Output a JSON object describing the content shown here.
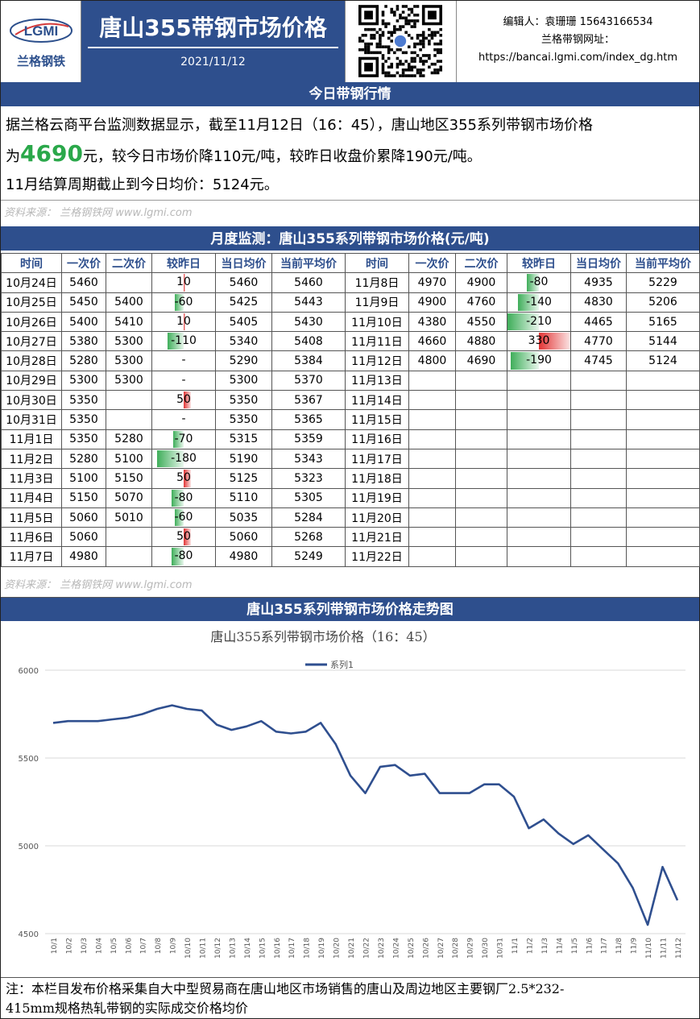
{
  "header": {
    "logo_text": "兰格钢铁",
    "logo_mark": "LGMI",
    "title": "唐山355带钢市场价格",
    "date": "2021/11/12",
    "editor": "编辑人：袁珊珊 15643166534",
    "site_label": "兰格带钢网址：",
    "site_url": "https://bancai.lgmi.com/index_dg.htm"
  },
  "today_section": {
    "title": "今日带钢行情",
    "line1": "据兰格云商平台监测数据显示，截至11月12日（16：45），唐山地区355系列带钢市场价格",
    "line2_prefix": "为",
    "price": "4690",
    "line2_suffix": "元，较今日市场价降110元/吨，较昨日收盘价累降190元/吨。",
    "line3": "11月结算周期截止到今日均价：5124元。",
    "source": "资料来源： 兰格钢铁网 www.lgmi.com"
  },
  "monthly_section": {
    "title": "月度监测：唐山355系列带钢市场价格(元/吨)",
    "headers": [
      "时间",
      "一次价",
      "二次价",
      "较昨日",
      "当日均价",
      "当前平均价",
      "时间",
      "一次价",
      "二次价",
      "较昨日",
      "当日均价",
      "当前平均价"
    ],
    "rows": [
      {
        "d1": "10月24日",
        "p1": "5460",
        "q1": "",
        "c1": "10",
        "a1": "5460",
        "m1": "5460",
        "d2": "11月8日",
        "p2": "4970",
        "q2": "4900",
        "c2": "-80",
        "a2": "4935",
        "m2": "5229"
      },
      {
        "d1": "10月25日",
        "p1": "5450",
        "q1": "5400",
        "c1": "-60",
        "a1": "5425",
        "m1": "5443",
        "d2": "11月9日",
        "p2": "4900",
        "q2": "4760",
        "c2": "-140",
        "a2": "4830",
        "m2": "5206"
      },
      {
        "d1": "10月26日",
        "p1": "5400",
        "q1": "5410",
        "c1": "10",
        "a1": "5405",
        "m1": "5430",
        "d2": "11月10日",
        "p2": "4380",
        "q2": "4550",
        "c2": "-210",
        "a2": "4465",
        "m2": "5165"
      },
      {
        "d1": "10月27日",
        "p1": "5380",
        "q1": "5300",
        "c1": "-110",
        "a1": "5340",
        "m1": "5408",
        "d2": "11月11日",
        "p2": "4660",
        "q2": "4880",
        "c2": "330",
        "a2": "4770",
        "m2": "5144"
      },
      {
        "d1": "10月28日",
        "p1": "5280",
        "q1": "5300",
        "c1": "-",
        "a1": "5290",
        "m1": "5384",
        "d2": "11月12日",
        "p2": "4800",
        "q2": "4690",
        "c2": "-190",
        "a2": "4745",
        "m2": "5124"
      },
      {
        "d1": "10月29日",
        "p1": "5300",
        "q1": "5300",
        "c1": "-",
        "a1": "5300",
        "m1": "5370",
        "d2": "11月13日",
        "p2": "",
        "q2": "",
        "c2": "",
        "a2": "",
        "m2": ""
      },
      {
        "d1": "10月30日",
        "p1": "5350",
        "q1": "",
        "c1": "50",
        "a1": "5350",
        "m1": "5367",
        "d2": "11月14日",
        "p2": "",
        "q2": "",
        "c2": "",
        "a2": "",
        "m2": ""
      },
      {
        "d1": "10月31日",
        "p1": "5350",
        "q1": "",
        "c1": "-",
        "a1": "5350",
        "m1": "5365",
        "d2": "11月15日",
        "p2": "",
        "q2": "",
        "c2": "",
        "a2": "",
        "m2": ""
      },
      {
        "d1": "11月1日",
        "p1": "5350",
        "q1": "5280",
        "c1": "-70",
        "a1": "5315",
        "m1": "5359",
        "d2": "11月16日",
        "p2": "",
        "q2": "",
        "c2": "",
        "a2": "",
        "m2": ""
      },
      {
        "d1": "11月2日",
        "p1": "5280",
        "q1": "5100",
        "c1": "-180",
        "a1": "5190",
        "m1": "5343",
        "d2": "11月17日",
        "p2": "",
        "q2": "",
        "c2": "",
        "a2": "",
        "m2": ""
      },
      {
        "d1": "11月3日",
        "p1": "5100",
        "q1": "5150",
        "c1": "50",
        "a1": "5125",
        "m1": "5323",
        "d2": "11月18日",
        "p2": "",
        "q2": "",
        "c2": "",
        "a2": "",
        "m2": ""
      },
      {
        "d1": "11月4日",
        "p1": "5150",
        "q1": "5070",
        "c1": "-80",
        "a1": "5110",
        "m1": "5305",
        "d2": "11月19日",
        "p2": "",
        "q2": "",
        "c2": "",
        "a2": "",
        "m2": ""
      },
      {
        "d1": "11月5日",
        "p1": "5060",
        "q1": "5010",
        "c1": "-60",
        "a1": "5035",
        "m1": "5284",
        "d2": "11月20日",
        "p2": "",
        "q2": "",
        "c2": "",
        "a2": "",
        "m2": ""
      },
      {
        "d1": "11月6日",
        "p1": "5060",
        "q1": "",
        "c1": "50",
        "a1": "5060",
        "m1": "5268",
        "d2": "11月21日",
        "p2": "",
        "q2": "",
        "c2": "",
        "a2": "",
        "m2": ""
      },
      {
        "d1": "11月7日",
        "p1": "4980",
        "q1": "",
        "c1": "-80",
        "a1": "4980",
        "m1": "5249",
        "d2": "11月22日",
        "p2": "",
        "q2": "",
        "c2": "",
        "a2": "",
        "m2": ""
      }
    ],
    "source": "资料来源： 兰格钢铁网 www.lgmi.com"
  },
  "chart_section": {
    "title": "唐山355系列带钢市场价格走势图"
  },
  "chart_data": {
    "type": "line",
    "title": "唐山355系列带钢市场价格（16：45）",
    "legend_position": "top",
    "grid": true,
    "ylim": [
      4500,
      6000
    ],
    "yticks": [
      4500,
      5000,
      5500,
      6000
    ],
    "line_color": "#2f4f8f",
    "x": [
      "10/1",
      "10/2",
      "10/3",
      "10/4",
      "10/5",
      "10/6",
      "10/7",
      "10/8",
      "10/9",
      "10/10",
      "10/11",
      "10/12",
      "10/13",
      "10/14",
      "10/15",
      "10/16",
      "10/17",
      "10/18",
      "10/19",
      "10/20",
      "10/21",
      "10/22",
      "10/23",
      "10/24",
      "10/25",
      "10/26",
      "10/27",
      "10/28",
      "10/29",
      "10/30",
      "10/31",
      "11/1",
      "11/2",
      "11/3",
      "11/4",
      "11/5",
      "11/6",
      "11/7",
      "11/8",
      "11/9",
      "11/10",
      "11/11",
      "11/12"
    ],
    "series": [
      {
        "name": "系列1",
        "values": [
          5700,
          5710,
          5710,
          5710,
          5720,
          5730,
          5750,
          5780,
          5800,
          5780,
          5770,
          5690,
          5660,
          5680,
          5710,
          5650,
          5640,
          5650,
          5700,
          5580,
          5400,
          5300,
          5450,
          5460,
          5400,
          5410,
          5300,
          5300,
          5300,
          5350,
          5350,
          5280,
          5100,
          5150,
          5070,
          5010,
          5060,
          4980,
          4900,
          4760,
          4550,
          4880,
          4690
        ]
      }
    ]
  },
  "note": {
    "line1": "注：本栏目发布价格采集自大中型贸易商在唐山地区市场销售的唐山及周边地区主要钢厂2.5*232-",
    "line2": "415mm规格热轧带钢的实际成交价格均价"
  }
}
